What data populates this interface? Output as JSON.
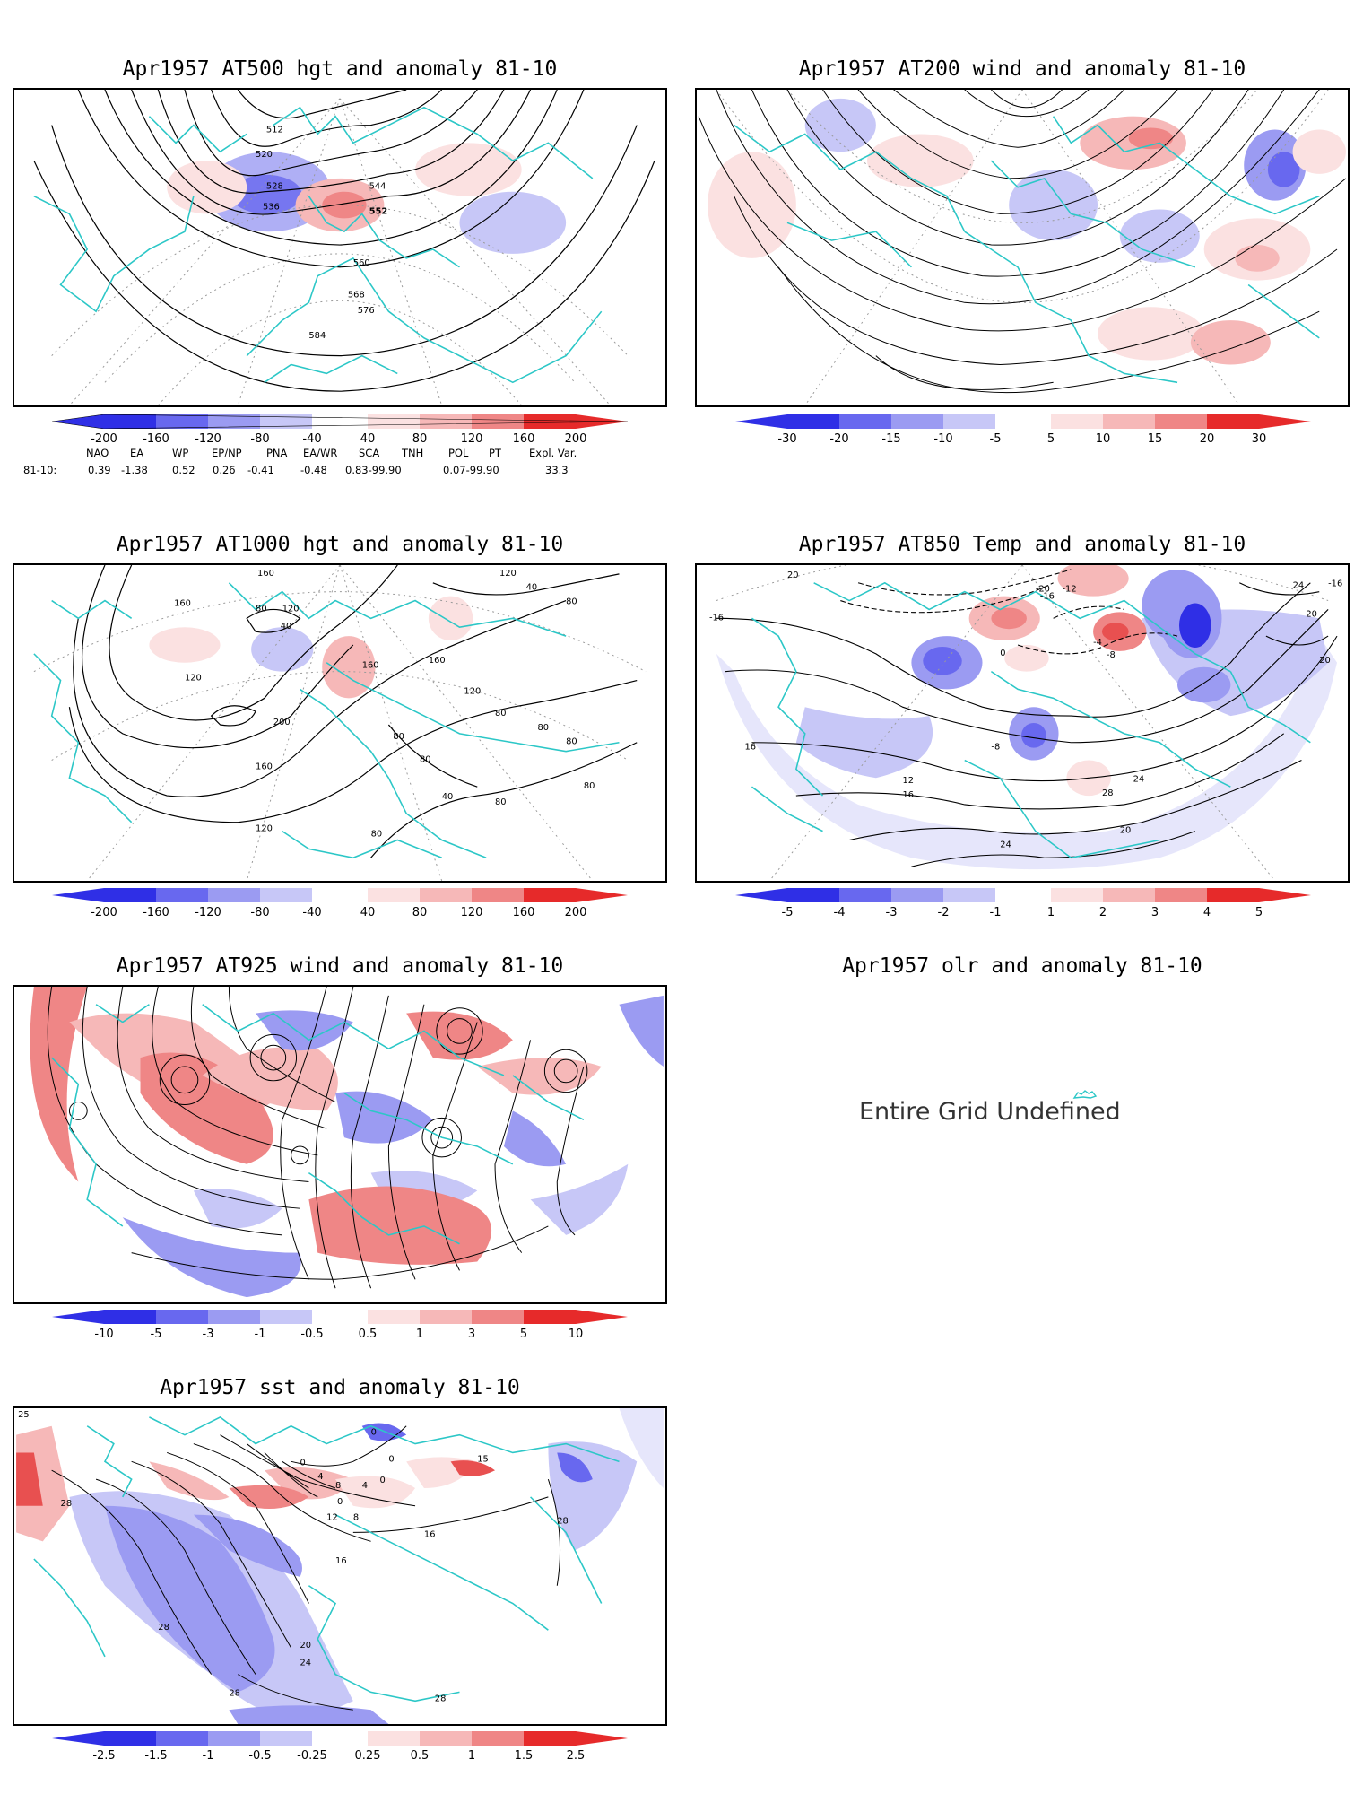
{
  "panels": {
    "p1": {
      "title": "Apr1957 AT500 hgt and anomaly 81-10",
      "contours": [
        "512",
        "520",
        "528",
        "536",
        "544",
        "552",
        "560",
        "568",
        "576",
        "584"
      ]
    },
    "p2": {
      "title": "Apr1957 AT200 wind and anomaly 81-10"
    },
    "p3": {
      "title": "Apr1957 AT1000 hgt and anomaly 81-10",
      "contours": [
        "160",
        "120",
        "80",
        "40",
        "120",
        "160",
        "200",
        "160",
        "120",
        "80",
        "40",
        "80"
      ]
    },
    "p4": {
      "title": "Apr1957 AT850 Temp and anomaly 81-10",
      "contours": [
        "20",
        "24",
        "-16",
        "16",
        "20",
        "-12",
        "-8",
        "-4",
        "8",
        "12",
        "16",
        "20",
        "24",
        "28",
        "20"
      ]
    },
    "p5": {
      "title": "Apr1957 AT925 wind and anomaly 81-10"
    },
    "p6": {
      "title": "Apr1957 olr and anomaly 81-10",
      "message": "Entire Grid Undefined"
    },
    "p7": {
      "title": "Apr1957 sst and anomaly 81-10",
      "contours": [
        "28",
        "0",
        "4",
        "8",
        "12",
        "16",
        "20",
        "24",
        "28",
        "28"
      ]
    }
  },
  "colorbars": {
    "hgt500": [
      "-200",
      "-160",
      "-120",
      "-80",
      "-40",
      "40",
      "80",
      "120",
      "160",
      "200"
    ],
    "wind200": [
      "-30",
      "-20",
      "-15",
      "-10",
      "-5",
      "5",
      "10",
      "15",
      "20",
      "30"
    ],
    "hgt1000": [
      "-200",
      "-160",
      "-120",
      "-80",
      "-40",
      "40",
      "80",
      "120",
      "160",
      "200"
    ],
    "temp850": [
      "-5",
      "-4",
      "-3",
      "-2",
      "-1",
      "1",
      "2",
      "3",
      "4",
      "5"
    ],
    "wind925": [
      "-10",
      "-5",
      "-3",
      "-1",
      "-0.5",
      "0.5",
      "1",
      "3",
      "5",
      "10"
    ],
    "sst": [
      "-2.5",
      "-1.5",
      "-1",
      "-0.5",
      "-0.25",
      "0.25",
      "0.5",
      "1",
      "1.5",
      "2.5"
    ]
  },
  "colors": {
    "neg": [
      "#2f2fe6",
      "#6868ef",
      "#9b9bf2",
      "#c7c7f7",
      "#e6e6fb"
    ],
    "pos": [
      "#fbe1e1",
      "#f6b8b8",
      "#ef8686",
      "#e85050",
      "#e62a2a"
    ],
    "coast": "#2cc7c7"
  },
  "teleconnections": {
    "headers": [
      "NAO",
      "EA",
      "WP",
      "EP/NP",
      "PNA",
      "EA/WR",
      "SCA",
      "TNH",
      "POL",
      "PT",
      "Expl. Var."
    ],
    "row_label": "81-10:",
    "values": [
      "0.39",
      "-1.38",
      "0.52",
      "0.26",
      "-0.41",
      "-0.48",
      "0.83-99.90",
      "0.07-99.90",
      "33.3"
    ]
  }
}
